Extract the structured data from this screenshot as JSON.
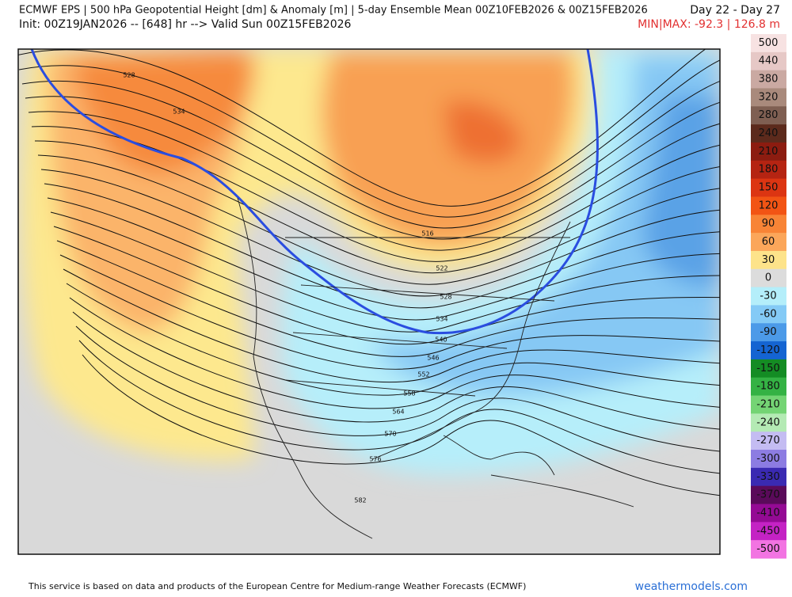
{
  "header": {
    "title": "ECMWF EPS | 500 hPa Geopotential Height [dm] & Anomaly [m] | 5-day Ensemble Mean 00Z10FEB2026 & 00Z15FEB2026",
    "days": "Day 22 - Day 27",
    "init": "Init: 00Z19JAN2026 -- [648] hr --> Valid Sun 00Z15FEB2026",
    "minmax": "MIN|MAX: -92.3 | 126.8 m"
  },
  "contour_labels": [
    528,
    534,
    516,
    522,
    528,
    534,
    540,
    546,
    552,
    558,
    564,
    570,
    576,
    582
  ],
  "colorbar": [
    {
      "label": "500",
      "color": "#f7e2e2"
    },
    {
      "label": "440",
      "color": "#e6c8c6"
    },
    {
      "label": "380",
      "color": "#caa9a2"
    },
    {
      "label": "320",
      "color": "#a98a7c"
    },
    {
      "label": "280",
      "color": "#7f5f52"
    },
    {
      "label": "240",
      "color": "#5c2a1c"
    },
    {
      "label": "210",
      "color": "#8c1c10"
    },
    {
      "label": "180",
      "color": "#b52412"
    },
    {
      "label": "150",
      "color": "#dc3512"
    },
    {
      "label": "120",
      "color": "#f25414"
    },
    {
      "label": "90",
      "color": "#f88436"
    },
    {
      "label": "60",
      "color": "#fba65a"
    },
    {
      "label": "30",
      "color": "#fde38a"
    },
    {
      "label": "0",
      "color": "#dcdcdc"
    },
    {
      "label": "-30",
      "color": "#b4eefa"
    },
    {
      "label": "-60",
      "color": "#84caf6"
    },
    {
      "label": "-90",
      "color": "#4c9ae8"
    },
    {
      "label": "-120",
      "color": "#1464d2"
    },
    {
      "label": "-150",
      "color": "#148c24"
    },
    {
      "label": "-180",
      "color": "#34b244"
    },
    {
      "label": "-210",
      "color": "#74d474"
    },
    {
      "label": "-240",
      "color": "#b4eab4"
    },
    {
      "label": "-270",
      "color": "#c4bcf2"
    },
    {
      "label": "-300",
      "color": "#8c7ce2"
    },
    {
      "label": "-330",
      "color": "#3a2ab2"
    },
    {
      "label": "-370",
      "color": "#5a0a5a"
    },
    {
      "label": "-410",
      "color": "#940a94"
    },
    {
      "label": "-450",
      "color": "#c422c4"
    },
    {
      "label": "-500",
      "color": "#f274e2"
    }
  ],
  "footer": {
    "credit": "This service is based on data and products of the European Centre for Medium-range Weather Forecasts (ECMWF)",
    "site": "weathermodels.com"
  }
}
